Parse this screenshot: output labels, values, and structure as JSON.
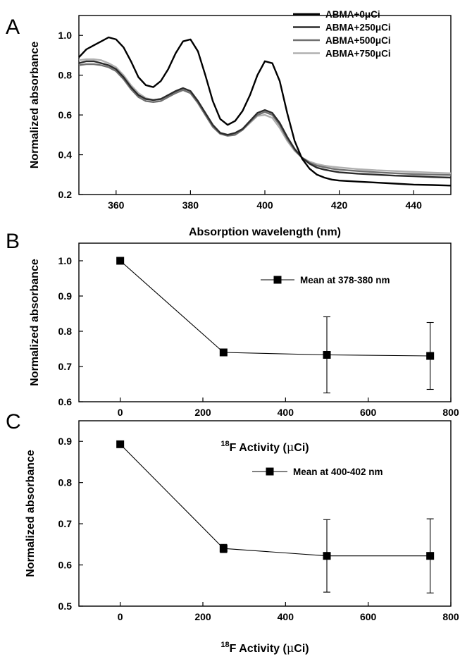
{
  "chart_data": [
    {
      "panel": "A",
      "type": "line",
      "xlabel": "Absorption wavelength (nm)",
      "ylabel": "Normalized absorbance",
      "xlim": [
        350,
        450
      ],
      "ylim": [
        0.2,
        1.1
      ],
      "xticks": [
        360,
        380,
        400,
        420,
        440
      ],
      "yticks": [
        0.2,
        0.4,
        0.6,
        0.8,
        1.0
      ],
      "xtick_labels": [
        "360",
        "380",
        "400",
        "420",
        "440"
      ],
      "ytick_labels": [
        "0.2",
        "0.4",
        "0.6",
        "0.8",
        "1.0"
      ],
      "legend_position": "top-right",
      "x": [
        350,
        352,
        354,
        356,
        358,
        360,
        362,
        364,
        366,
        368,
        370,
        372,
        374,
        376,
        378,
        380,
        382,
        384,
        386,
        388,
        390,
        392,
        394,
        396,
        398,
        400,
        402,
        404,
        406,
        408,
        410,
        412,
        414,
        416,
        418,
        420,
        425,
        430,
        435,
        440,
        445,
        450
      ],
      "series": [
        {
          "name": "ABMA+0μCi",
          "color": "#000000",
          "values": [
            0.89,
            0.93,
            0.95,
            0.97,
            0.99,
            0.98,
            0.94,
            0.87,
            0.79,
            0.75,
            0.74,
            0.77,
            0.83,
            0.91,
            0.97,
            0.98,
            0.92,
            0.8,
            0.67,
            0.58,
            0.55,
            0.57,
            0.62,
            0.7,
            0.8,
            0.87,
            0.86,
            0.77,
            0.61,
            0.47,
            0.38,
            0.33,
            0.3,
            0.285,
            0.275,
            0.27,
            0.265,
            0.26,
            0.255,
            0.25,
            0.248,
            0.245
          ]
        },
        {
          "name": "ABMA+250μCi",
          "color": "#2b2b2b",
          "values": [
            0.86,
            0.87,
            0.87,
            0.86,
            0.85,
            0.83,
            0.79,
            0.74,
            0.7,
            0.68,
            0.675,
            0.68,
            0.7,
            0.72,
            0.735,
            0.72,
            0.67,
            0.61,
            0.55,
            0.51,
            0.5,
            0.51,
            0.53,
            0.57,
            0.61,
            0.625,
            0.61,
            0.56,
            0.49,
            0.43,
            0.385,
            0.355,
            0.335,
            0.325,
            0.318,
            0.312,
            0.305,
            0.3,
            0.295,
            0.292,
            0.288,
            0.285
          ]
        },
        {
          "name": "ABMA+500μCi",
          "color": "#707070",
          "values": [
            0.85,
            0.855,
            0.855,
            0.85,
            0.84,
            0.82,
            0.78,
            0.73,
            0.69,
            0.67,
            0.665,
            0.67,
            0.69,
            0.71,
            0.725,
            0.71,
            0.66,
            0.6,
            0.54,
            0.505,
            0.495,
            0.5,
            0.525,
            0.565,
            0.6,
            0.615,
            0.6,
            0.55,
            0.48,
            0.425,
            0.385,
            0.36,
            0.345,
            0.337,
            0.33,
            0.325,
            0.318,
            0.312,
            0.307,
            0.303,
            0.3,
            0.298
          ]
        },
        {
          "name": "ABMA+750μCi",
          "color": "#b0b0b0",
          "values": [
            0.875,
            0.88,
            0.88,
            0.875,
            0.86,
            0.84,
            0.8,
            0.75,
            0.71,
            0.685,
            0.675,
            0.68,
            0.7,
            0.715,
            0.725,
            0.71,
            0.665,
            0.605,
            0.545,
            0.51,
            0.5,
            0.505,
            0.525,
            0.56,
            0.595,
            0.6,
            0.585,
            0.535,
            0.47,
            0.42,
            0.385,
            0.365,
            0.353,
            0.345,
            0.34,
            0.336,
            0.328,
            0.322,
            0.318,
            0.314,
            0.31,
            0.307
          ]
        }
      ]
    },
    {
      "panel": "B",
      "type": "line",
      "xlabel_sup": "18",
      "xlabel_main": "F Activity (",
      "xlabel_mu": "μ",
      "xlabel_end": "Ci)",
      "ylabel": "Normalized absorbance",
      "xlim": [
        -100,
        800
      ],
      "ylim": [
        0.6,
        1.05
      ],
      "xticks": [
        0,
        200,
        400,
        600,
        800
      ],
      "yticks": [
        0.6,
        0.7,
        0.8,
        0.9,
        1.0
      ],
      "xtick_labels": [
        "0",
        "200",
        "400",
        "600",
        "800"
      ],
      "ytick_labels": [
        "0.6",
        "0.7",
        "0.8",
        "0.9",
        "1.0"
      ],
      "legend_position": "top-right",
      "series": [
        {
          "name": "Mean at 378-380 nm",
          "x": [
            0,
            250,
            500,
            750
          ],
          "values": [
            1.0,
            0.74,
            0.733,
            0.73
          ],
          "error": [
            0,
            0.003,
            0.108,
            0.095
          ]
        }
      ]
    },
    {
      "panel": "C",
      "type": "line",
      "xlabel_sup": "18",
      "xlabel_main": "F Activity (",
      "xlabel_mu": "μ",
      "xlabel_end": "Ci)",
      "ylabel": "Normalized absorbance",
      "xlim": [
        -100,
        800
      ],
      "ylim": [
        0.5,
        0.95
      ],
      "xticks": [
        0,
        200,
        400,
        600,
        800
      ],
      "yticks": [
        0.5,
        0.6,
        0.7,
        0.8,
        0.9
      ],
      "xtick_labels": [
        "0",
        "200",
        "400",
        "600",
        "800"
      ],
      "ytick_labels": [
        "0.5",
        "0.6",
        "0.7",
        "0.8",
        "0.9"
      ],
      "legend_position": "top-right",
      "series": [
        {
          "name": "Mean at 400-402 nm",
          "x": [
            0,
            250,
            500,
            750
          ],
          "values": [
            0.893,
            0.64,
            0.622,
            0.622
          ],
          "error": [
            0.003,
            0.01,
            0.088,
            0.09
          ]
        }
      ]
    }
  ]
}
